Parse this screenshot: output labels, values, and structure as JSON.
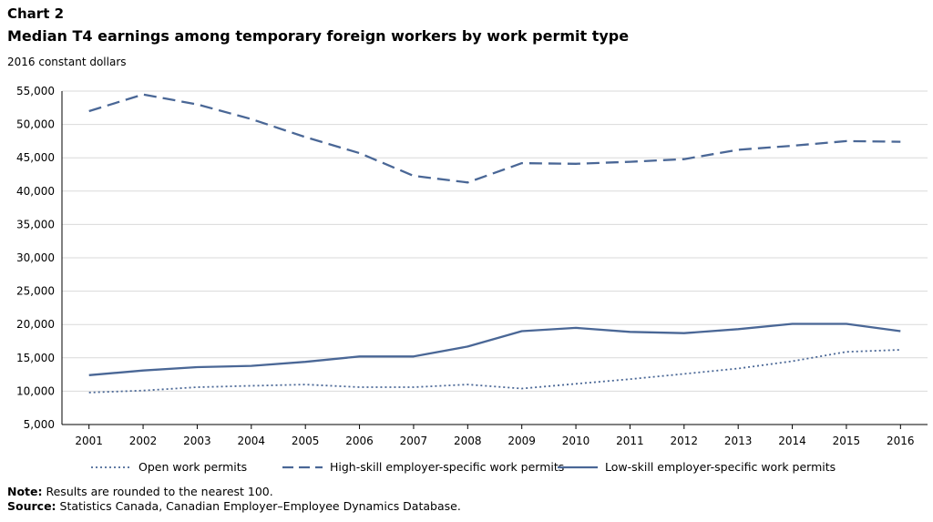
{
  "chart_label": "Chart 2",
  "title": "Median T4 earnings among temporary foreign workers by work permit type",
  "units_label": "2016 constant dollars",
  "note_label": "Note:",
  "note_text": " Results are rounded to the nearest 100.",
  "source_label": "Source:",
  "source_text": " Statistics Canada, Canadian Employer–Employee Dynamics Database.",
  "colors": {
    "series": "#4a6796",
    "grid": "#d9d9d9",
    "axis": "#000000"
  },
  "chart_data": {
    "type": "line",
    "x": [
      2001,
      2002,
      2003,
      2004,
      2005,
      2006,
      2007,
      2008,
      2009,
      2010,
      2011,
      2012,
      2013,
      2014,
      2015,
      2016
    ],
    "ylim": [
      5000,
      55000
    ],
    "yticks": [
      5000,
      10000,
      15000,
      20000,
      25000,
      30000,
      35000,
      40000,
      45000,
      50000,
      55000
    ],
    "ytick_labels": [
      "5,000",
      "10,000",
      "15,000",
      "20,000",
      "25,000",
      "30,000",
      "35,000",
      "40,000",
      "45,000",
      "50,000",
      "55,000"
    ],
    "grid": true,
    "legend_position": "bottom",
    "series": [
      {
        "name": "Open work permits",
        "style": "dotted",
        "values": [
          9800,
          10100,
          10600,
          10800,
          11000,
          10600,
          10600,
          11000,
          10400,
          11100,
          11800,
          12600,
          13400,
          14500,
          15900,
          16200
        ]
      },
      {
        "name": "High-skill employer-specific work permits",
        "style": "dashed",
        "values": [
          52000,
          54500,
          53000,
          50800,
          48100,
          45700,
          42300,
          41300,
          44200,
          44100,
          44400,
          44800,
          46200,
          46800,
          47500,
          47400
        ]
      },
      {
        "name": "Low-skill employer-specific work permits",
        "style": "solid",
        "values": [
          12400,
          13100,
          13600,
          13800,
          14400,
          15200,
          15200,
          16700,
          19000,
          19500,
          18900,
          18700,
          19300,
          20100,
          20100,
          19000
        ]
      }
    ]
  }
}
